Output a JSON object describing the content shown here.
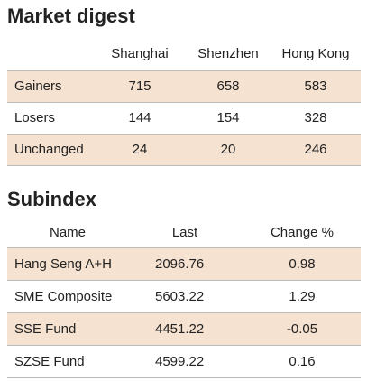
{
  "market_digest": {
    "title": "Market digest",
    "columns": [
      "Shanghai",
      "Shenzhen",
      "Hong Kong"
    ],
    "rows": [
      {
        "label": "Gainers",
        "values": [
          715,
          658,
          583
        ]
      },
      {
        "label": "Losers",
        "values": [
          144,
          154,
          328
        ]
      },
      {
        "label": "Unchanged",
        "values": [
          24,
          20,
          246
        ]
      }
    ]
  },
  "subindex": {
    "title": "Subindex",
    "columns": [
      "Name",
      "Last",
      "Change %"
    ],
    "rows": [
      {
        "name": "Hang Seng A+H",
        "last": 2096.76,
        "change": 0.98
      },
      {
        "name": "SME Composite",
        "last": 5603.22,
        "change": 1.29
      },
      {
        "name": "SSE Fund",
        "last": 4451.22,
        "change": -0.05
      },
      {
        "name": "SZSE Fund",
        "last": 4599.22,
        "change": 0.16
      }
    ]
  }
}
